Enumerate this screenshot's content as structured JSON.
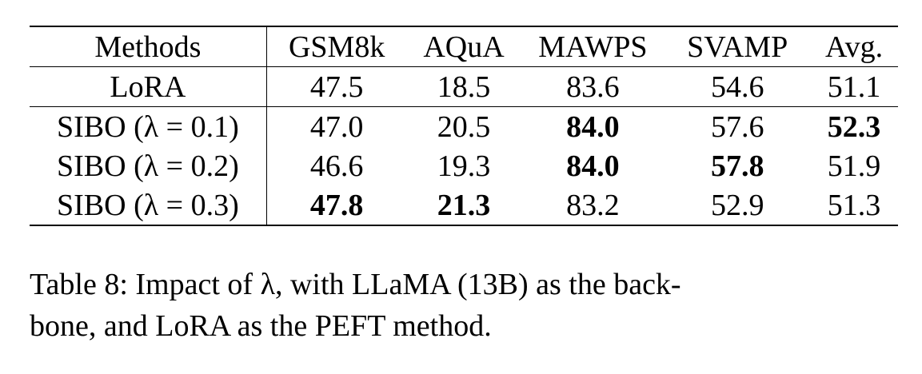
{
  "table": {
    "headers": [
      "Methods",
      "GSM8k",
      "AQuA",
      "MAWPS",
      "SVAMP",
      "Avg."
    ],
    "rows": [
      {
        "method": "LoRA",
        "values": [
          "47.5",
          "18.5",
          "83.6",
          "54.6",
          "51.1"
        ],
        "bold": [
          false,
          false,
          false,
          false,
          false
        ]
      },
      {
        "method": "SIBO (λ = 0.1)",
        "values": [
          "47.0",
          "20.5",
          "84.0",
          "57.6",
          "52.3"
        ],
        "bold": [
          false,
          false,
          true,
          false,
          true
        ]
      },
      {
        "method": "SIBO (λ = 0.2)",
        "values": [
          "46.6",
          "19.3",
          "84.0",
          "57.8",
          "51.9"
        ],
        "bold": [
          false,
          false,
          true,
          true,
          false
        ]
      },
      {
        "method": "SIBO (λ = 0.3)",
        "values": [
          "47.8",
          "21.3",
          "83.2",
          "52.9",
          "51.3"
        ],
        "bold": [
          true,
          true,
          false,
          false,
          false
        ]
      }
    ]
  },
  "caption": {
    "line1": "Table 8: Impact of λ, with LLaMA (13B) as the back-",
    "line2": "bone, and LoRA as the PEFT method."
  }
}
